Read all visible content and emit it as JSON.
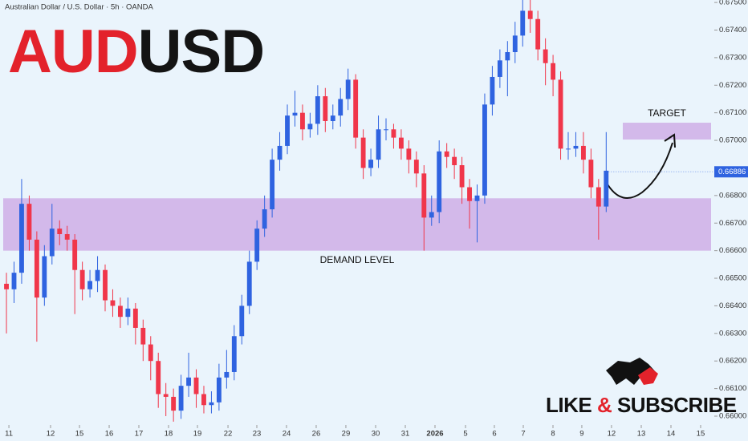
{
  "chart_data": {
    "type": "candlestick",
    "header": "Australian Dollar / U.S. Dollar · 5h · OANDA",
    "title_parts": [
      {
        "text": "AUD",
        "color": "#e3222b"
      },
      {
        "text": "USD",
        "color": "#141414"
      }
    ],
    "open": [
      0.6648,
      0.6646,
      0.6652,
      0.6677,
      0.6664,
      0.6643,
      0.6658,
      0.6668,
      0.6666,
      0.6664,
      0.6653,
      0.6646,
      0.6649,
      0.6653,
      0.6642,
      0.664,
      0.6636,
      0.6639,
      0.6632,
      0.6626,
      0.662,
      0.6608,
      0.6607,
      0.6602,
      0.6611,
      0.6614,
      0.6608,
      0.6604,
      0.6605,
      0.6614,
      0.6616,
      0.6629,
      0.664,
      0.6656,
      0.6668,
      0.6675,
      0.6693,
      0.6698,
      0.6709,
      0.671,
      0.6704,
      0.6706,
      0.6716,
      0.6707,
      0.6709,
      0.6715,
      0.6722,
      0.6701,
      0.669,
      0.6693,
      0.6704,
      0.6704,
      0.6701,
      0.6697,
      0.6693,
      0.6688,
      0.6672,
      0.6674,
      0.6696,
      0.6694,
      0.6691,
      0.6683,
      0.6678,
      0.668,
      0.6713,
      0.6723,
      0.6729,
      0.6732,
      0.6738,
      0.6747,
      0.6744,
      0.6733,
      0.6728,
      0.6722,
      0.6697,
      0.6697,
      0.6698,
      0.6693,
      0.6683,
      0.6676
    ],
    "high": [
      0.6652,
      0.6656,
      0.6686,
      0.668,
      0.6667,
      0.6662,
      0.6677,
      0.6671,
      0.6669,
      0.6666,
      0.6656,
      0.6653,
      0.6658,
      0.6655,
      0.6646,
      0.6643,
      0.6643,
      0.6641,
      0.6635,
      0.6629,
      0.6623,
      0.6612,
      0.661,
      0.6615,
      0.6623,
      0.6617,
      0.6611,
      0.6609,
      0.6619,
      0.6624,
      0.6633,
      0.6644,
      0.666,
      0.6671,
      0.668,
      0.6697,
      0.6703,
      0.6713,
      0.6718,
      0.6713,
      0.671,
      0.672,
      0.6719,
      0.6713,
      0.6719,
      0.6726,
      0.6724,
      0.6704,
      0.6697,
      0.6709,
      0.6708,
      0.6706,
      0.6704,
      0.67,
      0.6696,
      0.6691,
      0.668,
      0.67,
      0.6699,
      0.6697,
      0.6694,
      0.6686,
      0.6684,
      0.6717,
      0.6727,
      0.6733,
      0.6736,
      0.6743,
      0.6751,
      0.6751,
      0.6747,
      0.6737,
      0.6731,
      0.6725,
      0.6703,
      0.6703,
      0.6703,
      0.6697,
      0.6686,
      0.6703
    ],
    "low": [
      0.663,
      0.6641,
      0.6648,
      0.666,
      0.6627,
      0.664,
      0.6655,
      0.6662,
      0.666,
      0.6637,
      0.6642,
      0.6643,
      0.6645,
      0.6638,
      0.6636,
      0.6632,
      0.6633,
      0.6626,
      0.662,
      0.6613,
      0.6603,
      0.66,
      0.6598,
      0.6599,
      0.6607,
      0.6603,
      0.6601,
      0.6601,
      0.6602,
      0.661,
      0.6613,
      0.6626,
      0.6637,
      0.6653,
      0.6665,
      0.6672,
      0.6689,
      0.6695,
      0.6705,
      0.67,
      0.6701,
      0.6702,
      0.6703,
      0.6704,
      0.6705,
      0.6711,
      0.6697,
      0.6686,
      0.6687,
      0.669,
      0.67,
      0.6697,
      0.6693,
      0.6688,
      0.6683,
      0.666,
      0.6669,
      0.667,
      0.669,
      0.6686,
      0.6677,
      0.6668,
      0.6663,
      0.6677,
      0.6709,
      0.6719,
      0.6716,
      0.6728,
      0.6734,
      0.6739,
      0.6729,
      0.672,
      0.6716,
      0.6693,
      0.6693,
      0.6694,
      0.6688,
      0.6679,
      0.6664,
      0.6674
    ],
    "close": [
      0.6646,
      0.6652,
      0.6677,
      0.6664,
      0.6643,
      0.6658,
      0.6668,
      0.6666,
      0.6664,
      0.6653,
      0.6646,
      0.6649,
      0.6653,
      0.6642,
      0.664,
      0.6636,
      0.6639,
      0.6632,
      0.6626,
      0.662,
      0.6608,
      0.6607,
      0.6602,
      0.6611,
      0.6614,
      0.6608,
      0.6604,
      0.6605,
      0.6614,
      0.6616,
      0.6629,
      0.664,
      0.6656,
      0.6668,
      0.6675,
      0.6693,
      0.6698,
      0.6709,
      0.671,
      0.6704,
      0.6706,
      0.6716,
      0.6707,
      0.6709,
      0.6715,
      0.6722,
      0.6701,
      0.669,
      0.6693,
      0.6704,
      0.6704,
      0.6701,
      0.6697,
      0.6693,
      0.6688,
      0.6672,
      0.6674,
      0.6696,
      0.6694,
      0.6691,
      0.6683,
      0.6678,
      0.668,
      0.6713,
      0.6723,
      0.6729,
      0.6732,
      0.6738,
      0.6747,
      0.6744,
      0.6733,
      0.6728,
      0.6722,
      0.6697,
      0.6697,
      0.6698,
      0.6693,
      0.6683,
      0.6676,
      0.6689
    ],
    "up_color": "#2f63e0",
    "down_color": "#f0364a",
    "xlim": [
      -0.85,
      93.24
    ],
    "ylim": [
      0.65968,
      0.67509
    ],
    "xticks": [
      {
        "value": 0.32,
        "label": "11"
      },
      {
        "value": 5.81,
        "label": "12"
      },
      {
        "value": 9.62,
        "label": "15"
      },
      {
        "value": 13.53,
        "label": "16"
      },
      {
        "value": 17.44,
        "label": "17"
      },
      {
        "value": 21.35,
        "label": "18"
      },
      {
        "value": 25.16,
        "label": "19"
      },
      {
        "value": 29.18,
        "label": "22"
      },
      {
        "value": 32.98,
        "label": "23"
      },
      {
        "value": 36.89,
        "label": "24"
      },
      {
        "value": 40.8,
        "label": "26"
      },
      {
        "value": 44.71,
        "label": "29"
      },
      {
        "value": 48.63,
        "label": "30"
      },
      {
        "value": 52.54,
        "label": "31"
      },
      {
        "value": 56.45,
        "label": "2026"
      },
      {
        "value": 60.47,
        "label": "5"
      },
      {
        "value": 64.27,
        "label": "6"
      },
      {
        "value": 68.08,
        "label": "7"
      },
      {
        "value": 71.99,
        "label": "8"
      },
      {
        "value": 75.79,
        "label": "9"
      },
      {
        "value": 79.7,
        "label": "12"
      },
      {
        "value": 83.62,
        "label": "13"
      },
      {
        "value": 87.53,
        "label": "14"
      },
      {
        "value": 91.44,
        "label": "15"
      }
    ],
    "yticks": [
      {
        "value": 0.66,
        "label": "0.66000"
      },
      {
        "value": 0.661,
        "label": "0.66100"
      },
      {
        "value": 0.662,
        "label": "0.66200"
      },
      {
        "value": 0.663,
        "label": "0.66300"
      },
      {
        "value": 0.664,
        "label": "0.66400"
      },
      {
        "value": 0.665,
        "label": "0.66500"
      },
      {
        "value": 0.666,
        "label": "0.66600"
      },
      {
        "value": 0.667,
        "label": "0.66700"
      },
      {
        "value": 0.668,
        "label": "0.66800"
      },
      {
        "value": 0.67,
        "label": "0.67000"
      },
      {
        "value": 0.671,
        "label": "0.67100"
      },
      {
        "value": 0.672,
        "label": "0.67200"
      },
      {
        "value": 0.673,
        "label": "0.67300"
      },
      {
        "value": 0.674,
        "label": "0.67400"
      },
      {
        "value": 0.675,
        "label": "0.67500"
      }
    ],
    "last_price": 0.66886,
    "last_price_color": "#2f63e0",
    "grid": false,
    "zones": [
      {
        "label": "DEMAND LEVEL",
        "top": 0.6679,
        "bottom": 0.666,
        "color": "#cfaee6"
      },
      {
        "label": "TARGET",
        "top": 0.67064,
        "bottom": 0.67003,
        "color": "#cfaee6"
      }
    ],
    "branding": [
      {
        "text": "LIKE ",
        "color": "#111111"
      },
      {
        "text": "&",
        "color": "#e3222b"
      },
      {
        "text": " SUBSCRIBE",
        "color": "#111111"
      }
    ]
  }
}
